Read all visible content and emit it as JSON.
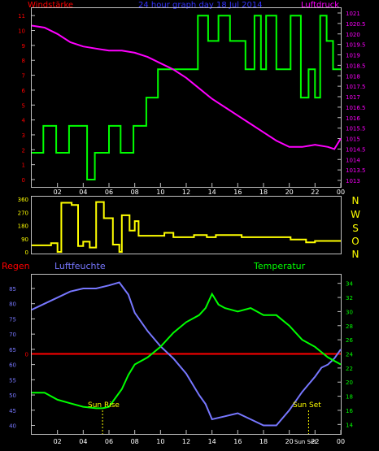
{
  "colors": {
    "background": "#000000",
    "frame": "#c0c0c0",
    "wind_label": "#ff0000",
    "title": "#3333ff",
    "pressure": "#ff00ff",
    "wind_speed": "#00ff00",
    "wind_dir": "#ffff00",
    "compass": "#ffff00",
    "rain": "#ff0000",
    "humidity": "#7777ff",
    "temperature": "#00ff00",
    "sun_label": "#ffff00",
    "time_axis": "#ffffff"
  },
  "header": {
    "wind_label": "Windstärke",
    "title": "24 hour graph day   18 Jul 2014",
    "pressure_label": "Luftdruck"
  },
  "compass_labels": [
    "N",
    "W",
    "S",
    "O",
    "N"
  ],
  "bottom_labels": {
    "rain": "Regen",
    "humidity": "Luftfeuchte",
    "temperature": "Temperatur",
    "sun_rise": "Sun Rise",
    "sun_set": "Sun Set",
    "sun_set_small": "Sun Set"
  },
  "chart_data": [
    {
      "type": "line",
      "title": "Windstärke / Luftdruck",
      "x_ticks": [
        "02",
        "04",
        "06",
        "08",
        "10",
        "12",
        "14",
        "16",
        "18",
        "20",
        "22",
        "00"
      ],
      "y_left_ticks": [
        0,
        1,
        2,
        3,
        4,
        5,
        6,
        7,
        8,
        9,
        10,
        11
      ],
      "y_left_range": [
        0,
        11.5
      ],
      "y_right_ticks": [
        "1013",
        "1013.5",
        "1014",
        "1014.5",
        "1015",
        "1015.5",
        "1016",
        "1016.5",
        "1017",
        "1017.5",
        "1018",
        "1018.5",
        "1019",
        "1019.5",
        "1020",
        "1020.5",
        "1021"
      ],
      "y_right_range": [
        1013,
        1021
      ],
      "series": [
        {
          "name": "Windstärke",
          "step": true,
          "points": [
            [
              0,
              1.8
            ],
            [
              0.9,
              1.8
            ],
            [
              0.9,
              3.6
            ],
            [
              1.9,
              3.6
            ],
            [
              1.9,
              1.8
            ],
            [
              2.9,
              1.8
            ],
            [
              2.9,
              3.6
            ],
            [
              4.3,
              3.6
            ],
            [
              4.3,
              0
            ],
            [
              4.9,
              0
            ],
            [
              4.9,
              1.8
            ],
            [
              6.0,
              1.8
            ],
            [
              6.0,
              3.6
            ],
            [
              6.9,
              3.6
            ],
            [
              6.9,
              1.8
            ],
            [
              7.9,
              1.8
            ],
            [
              7.9,
              3.6
            ],
            [
              8.9,
              3.6
            ],
            [
              8.9,
              5.5
            ],
            [
              9.8,
              5.5
            ],
            [
              9.8,
              7.4
            ],
            [
              12.9,
              7.4
            ],
            [
              12.9,
              11
            ],
            [
              13.7,
              11
            ],
            [
              13.7,
              9.3
            ],
            [
              14.5,
              9.3
            ],
            [
              14.5,
              11
            ],
            [
              15.4,
              11
            ],
            [
              15.4,
              9.3
            ],
            [
              16.6,
              9.3
            ],
            [
              16.6,
              7.4
            ],
            [
              17.3,
              7.4
            ],
            [
              17.3,
              11
            ],
            [
              17.8,
              11
            ],
            [
              17.8,
              7.4
            ],
            [
              18.2,
              7.4
            ],
            [
              18.2,
              11
            ],
            [
              19.0,
              11
            ],
            [
              19.0,
              7.4
            ],
            [
              20.1,
              7.4
            ],
            [
              20.1,
              11
            ],
            [
              20.9,
              11
            ],
            [
              20.9,
              5.5
            ],
            [
              21.5,
              5.5
            ],
            [
              21.5,
              7.4
            ],
            [
              22.0,
              7.4
            ],
            [
              22.0,
              5.5
            ],
            [
              22.4,
              5.5
            ],
            [
              22.4,
              11
            ],
            [
              22.9,
              11
            ],
            [
              22.9,
              9.3
            ],
            [
              23.4,
              9.3
            ],
            [
              23.4,
              7.4
            ],
            [
              24,
              7.4
            ]
          ]
        },
        {
          "name": "Luftdruck",
          "points": [
            [
              0,
              1020.4
            ],
            [
              1,
              1020.3
            ],
            [
              2,
              1020.0
            ],
            [
              3,
              1019.6
            ],
            [
              4,
              1019.4
            ],
            [
              5,
              1019.3
            ],
            [
              6,
              1019.2
            ],
            [
              7,
              1019.2
            ],
            [
              8,
              1019.1
            ],
            [
              9,
              1018.9
            ],
            [
              10,
              1018.6
            ],
            [
              11,
              1018.3
            ],
            [
              12,
              1017.9
            ],
            [
              13,
              1017.4
            ],
            [
              14,
              1016.9
            ],
            [
              15,
              1016.5
            ],
            [
              16,
              1016.1
            ],
            [
              17,
              1015.7
            ],
            [
              18,
              1015.3
            ],
            [
              19,
              1014.9
            ],
            [
              20,
              1014.6
            ],
            [
              21,
              1014.6
            ],
            [
              22,
              1014.7
            ],
            [
              23,
              1014.6
            ],
            [
              23.5,
              1014.5
            ],
            [
              24,
              1015.0
            ]
          ]
        }
      ]
    },
    {
      "type": "line",
      "title": "Windrichtung",
      "x_ticks": [],
      "y_left_ticks": [
        0,
        90,
        180,
        270,
        360
      ],
      "y_left_range": [
        0,
        360
      ],
      "series": [
        {
          "name": "Windrichtung",
          "step": true,
          "points": [
            [
              0,
              45
            ],
            [
              1.5,
              45
            ],
            [
              1.5,
              60
            ],
            [
              2.0,
              60
            ],
            [
              2.0,
              0
            ],
            [
              2.3,
              0
            ],
            [
              2.3,
              335
            ],
            [
              3.1,
              335
            ],
            [
              3.1,
              320
            ],
            [
              3.6,
              320
            ],
            [
              3.6,
              40
            ],
            [
              4.0,
              40
            ],
            [
              4.0,
              70
            ],
            [
              4.5,
              70
            ],
            [
              4.5,
              30
            ],
            [
              5.0,
              30
            ],
            [
              5.0,
              340
            ],
            [
              5.6,
              340
            ],
            [
              5.6,
              230
            ],
            [
              6.3,
              230
            ],
            [
              6.3,
              50
            ],
            [
              6.8,
              50
            ],
            [
              6.8,
              0
            ],
            [
              7.0,
              0
            ],
            [
              7.0,
              250
            ],
            [
              7.6,
              250
            ],
            [
              7.6,
              145
            ],
            [
              8.0,
              145
            ],
            [
              8.0,
              210
            ],
            [
              8.3,
              210
            ],
            [
              8.3,
              110
            ],
            [
              10.3,
              110
            ],
            [
              10.3,
              130
            ],
            [
              11.0,
              130
            ],
            [
              11.0,
              100
            ],
            [
              12.6,
              100
            ],
            [
              12.6,
              115
            ],
            [
              13.6,
              115
            ],
            [
              13.6,
              100
            ],
            [
              14.3,
              100
            ],
            [
              14.3,
              115
            ],
            [
              16.3,
              115
            ],
            [
              16.3,
              100
            ],
            [
              20.1,
              100
            ],
            [
              20.1,
              85
            ],
            [
              21.3,
              85
            ],
            [
              21.3,
              65
            ],
            [
              22.0,
              65
            ],
            [
              22.0,
              75
            ],
            [
              24,
              75
            ]
          ]
        }
      ]
    },
    {
      "type": "line",
      "title": "Regen / Luftfeuchte / Temperatur",
      "x_ticks": [
        "02",
        "04",
        "06",
        "08",
        "10",
        "12",
        "14",
        "16",
        "18",
        "20",
        "22",
        "00"
      ],
      "y_left_ticks": [
        40,
        45,
        50,
        55,
        60,
        65,
        70,
        75,
        80,
        85
      ],
      "y_left_range": [
        38,
        89
      ],
      "y_right_ticks": [
        14,
        16,
        18,
        20,
        22,
        24,
        26,
        28,
        30,
        32,
        34
      ],
      "y_right_range": [
        13,
        35
      ],
      "rain_value": 0,
      "sun_rise_hour": 5.5,
      "sun_set_hour": 21.5,
      "series": [
        {
          "name": "Luftfeuchte",
          "points": [
            [
              0,
              78
            ],
            [
              1,
              80
            ],
            [
              2,
              82
            ],
            [
              3,
              84
            ],
            [
              4,
              85
            ],
            [
              5,
              85
            ],
            [
              6,
              86
            ],
            [
              6.8,
              87
            ],
            [
              7.5,
              83
            ],
            [
              8,
              77
            ],
            [
              9,
              71
            ],
            [
              10,
              66
            ],
            [
              11,
              62
            ],
            [
              12,
              57
            ],
            [
              13,
              50
            ],
            [
              13.5,
              47
            ],
            [
              14,
              42
            ],
            [
              15,
              43
            ],
            [
              16,
              44
            ],
            [
              17,
              42
            ],
            [
              18,
              40
            ],
            [
              19,
              40
            ],
            [
              20,
              45
            ],
            [
              21,
              51
            ],
            [
              22,
              56
            ],
            [
              22.5,
              59
            ],
            [
              23,
              60
            ],
            [
              23.5,
              62
            ],
            [
              24,
              65
            ]
          ]
        },
        {
          "name": "Temperatur",
          "points": [
            [
              0,
              18.5
            ],
            [
              1,
              18.5
            ],
            [
              2,
              17.5
            ],
            [
              3,
              17
            ],
            [
              4,
              16.5
            ],
            [
              5,
              16.3
            ],
            [
              5.5,
              16.3
            ],
            [
              6,
              16.5
            ],
            [
              7,
              19
            ],
            [
              7.5,
              21
            ],
            [
              8,
              22.5
            ],
            [
              9,
              23.5
            ],
            [
              10,
              25
            ],
            [
              11,
              27
            ],
            [
              12,
              28.5
            ],
            [
              13,
              29.5
            ],
            [
              13.5,
              30.5
            ],
            [
              14,
              32.5
            ],
            [
              14.5,
              31
            ],
            [
              15,
              30.5
            ],
            [
              16,
              30
            ],
            [
              17,
              30.5
            ],
            [
              18,
              29.5
            ],
            [
              19,
              29.5
            ],
            [
              20,
              28
            ],
            [
              21,
              26
            ],
            [
              22,
              25
            ],
            [
              23,
              23.5
            ],
            [
              24,
              22.5
            ]
          ]
        }
      ]
    }
  ]
}
